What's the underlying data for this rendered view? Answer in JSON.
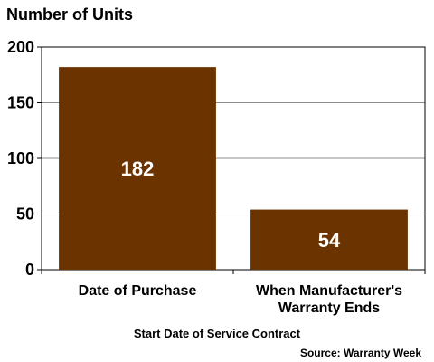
{
  "chart_data": {
    "type": "bar",
    "title": "",
    "ylabel": "Number of Units",
    "xlabel": "Start Date of Service Contract",
    "source": "Source: Warranty Week",
    "categories": [
      [
        "Date of Purchase"
      ],
      [
        "When Manufacturer's",
        "Warranty Ends"
      ]
    ],
    "values": [
      182,
      54
    ],
    "value_labels": [
      "182",
      "54"
    ],
    "ylim": [
      0,
      200
    ],
    "yticks": [
      0,
      50,
      100,
      150,
      200
    ],
    "grid": true,
    "bar_color": "#6b3300"
  }
}
